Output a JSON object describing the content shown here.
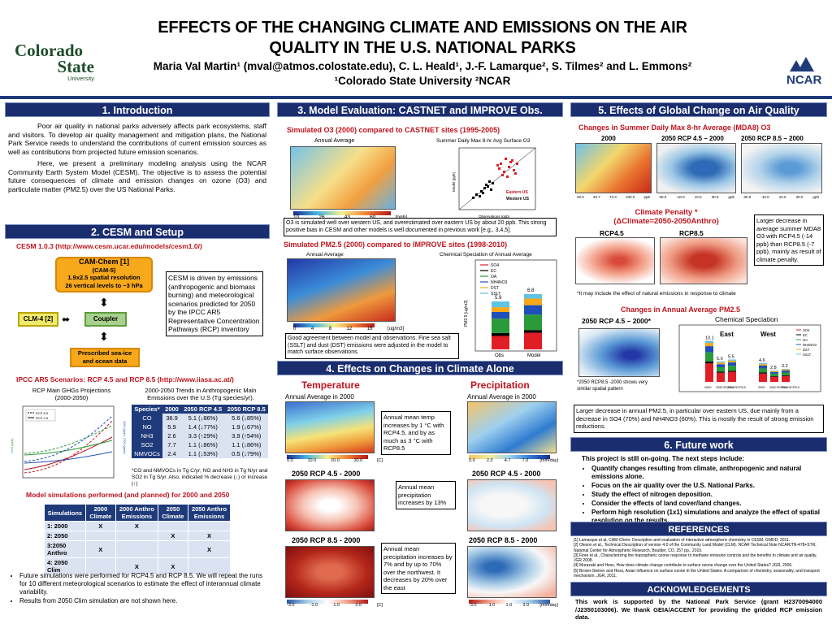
{
  "header": {
    "title_line1": "EFFECTS OF THE CHANGING  CLIMATE  AND EMISSIONS ON THE AIR",
    "title_line2": "QUALITY  IN THE U.S. NATIONAL PARKS",
    "authors": "Maria Val Martin¹ (mval@atmos.colostate.edu), C. L. Heald¹, J.-F. Lamarque², S. Tilmes² and L. Emmons²",
    "affiliation": "¹Colorado State University ²NCAR",
    "logo_left": [
      "Colorado",
      "State",
      "University"
    ],
    "logo_right": "NCAR"
  },
  "s1": {
    "title": "1. Introduction",
    "p1": "Poor air quality in national parks adversely affects park ecosystems, staff and visitors. To develop air quality management and mitigation plans, the National Park Service needs to understand the contributions of current emission sources as well as contributions from projected future emission scenarios.",
    "p2": "Here, we present a preliminary modeling analysis using the NCAR Community Earth System Model (CESM). The objective is to assess the potential future consequences of climate and emission changes on ozone (O3) and particulate matter (PM2.5) over the US National Parks."
  },
  "s2": {
    "title": "2. CESM and Setup",
    "url": "CESM 1.0.3 (http://www.cesm.ucar.edu/models/cesm1.0/)",
    "camchem": [
      "CAM-Chem [1]",
      "(CAM-5)",
      "1.9x2.5 spatial resolution",
      "26 vertical levels to ~3 hPa"
    ],
    "clm": "CLM-4 [2]",
    "coupler": "Coupler",
    "ocean": [
      "Prescribed sea-ice",
      "and ocean data"
    ],
    "driven": "CESM is driven by emissions (anthropogenic and biomass burning)  and meteorological scenarios predicted for 2050 by the IPCC AR5 Representative Concentration Pathways (RCP) inventory",
    "ipcc": "IPCC AR5 Scenarios: RCP 4.5 and RCP 8.5 (http://www.iiasa.ac.at/)",
    "ghg_title": [
      "RCP Main GHGs Projections",
      "(2000-2050)"
    ],
    "trend_title": [
      "2000-2050 Trends in Anthropogenic Main",
      "Emissions over the U.S (Tg species/yr)."
    ],
    "trend_headers": [
      "Species*",
      "2000",
      "2050 RCP 4.5",
      "2050 RCP 8.5"
    ],
    "trend_rows": [
      [
        "CO",
        "36.9",
        "5.1 (↓86%)",
        "5.6 (↓85%)"
      ],
      [
        "NO",
        "5.9",
        "1.4 (↓77%)",
        "1.9 (↓67%)"
      ],
      [
        "NH3",
        "2.6",
        "3.3 (↑29%)",
        "3.9 (↑54%)"
      ],
      [
        "SO2",
        "7.7",
        "1.1 (↓86%)",
        "1.1 (↓86%)"
      ],
      [
        "NMVOCs",
        "2.4",
        "1.1 (↓53%)",
        "0.5 (↓79%)"
      ]
    ],
    "trend_note": "*CO and NMVOCs in Tg C/yr; NO and NH3 in Tg N/yr and SO2 in Tg S/yr. Also, indicated % decrease (↓) or increase (↑)",
    "sim_title": "Model simulations performed (and planned) for 2000 and 2050",
    "sim_headers": [
      "Simulations",
      "2000 Climate",
      "2000 Anthro Emissions",
      "2050 Climate",
      "2050 Anthro Emissions"
    ],
    "sim_rows": [
      [
        "1: 2000",
        "X",
        "X",
        "",
        ""
      ],
      [
        "2: 2050",
        "",
        "",
        "X",
        "X"
      ],
      [
        "3:2050 Anthro",
        "X",
        "",
        "",
        "X"
      ],
      [
        "4: 2050 Clim",
        "",
        "X",
        "X",
        ""
      ]
    ],
    "bullets": [
      "Future simulations were performed for RCP4.5 and RCP 8.5. We will repeat the runs for 10 different meteorological scenarios to estimate the effect of interannual climate variability.",
      "Results from 2050 Clim simulation are not shown here."
    ],
    "ghg_legend": [
      "RCP 8.5",
      "RCP 4.5"
    ],
    "ghg_ylabels": [
      "CH4 (ppb)",
      "N2O (ppb), CO2 (ppm)"
    ]
  },
  "s3": {
    "title": "3. Model Evaluation: CASTNET and IMPROVE Obs.",
    "sub1": "Simulated  O3  (2000) compared to CASTNET sites (1995-2005)",
    "map1_label": "Annual  Average",
    "scatter_title": "Summer Daily Max 8-hr Avg Surface O3",
    "scatter_legend": [
      "Eastern US",
      "Western US"
    ],
    "scatter_xlabel": "Observations (ppb)",
    "scatter_ylabel": "Model (ppb)",
    "cb1": [
      "10",
      "26",
      "43",
      "60",
      "[ppb]"
    ],
    "note1": "O3  is simulated well over western US, and  overestimated over eastern US by about 20 ppb. This strong positive bias in CESM and other models is well documented in previous work [e.g., 3,4,5].",
    "sub2": "Simulated PM2.5  (2000) compared to IMPROVE sites (1998-2010)",
    "map2_label": "Annual Average",
    "bar_title": "Chemical Speciation of Annual Average",
    "bar_legend": [
      "SO4",
      "EC",
      "OA",
      "NH4NO3",
      "DST",
      "SSLT"
    ],
    "bar_values": [
      "5.9",
      "6.8"
    ],
    "bar_cats": [
      "Obs",
      "Model"
    ],
    "bar_ylabel": "PM2.5 [ug/m3]",
    "cb2": [
      "0",
      "4",
      "8",
      "12",
      "16",
      "[ug/m3]"
    ],
    "note2": "Good agreement between model and observations.  Fine sea salt (SSLT) and dust (DST) emissions were adjusted in the model to match surface observations."
  },
  "s4": {
    "title": "4. Effects on Changes in Climate Alone",
    "temp": "Temperature",
    "precip": "Precipitation",
    "aa2000": "Annual Average in 2000",
    "rcp45": "2050 RCP 4.5 - 2000",
    "rcp85": "2050 RCP 8.5 - 2000",
    "note_temp": "Annual mean temp increases by 1 °C with RCP4.5, and by as much as 3 °C with RCP8.5",
    "note_p45": "Annual mean precipitation increases by 13%",
    "note_p85": "Annual mean precipitation increases by 7% and by up to 70% over the northwest. It decreases by 20% over the east",
    "cb_t": [
      "0.0",
      "10.0",
      "20.0",
      "30.0",
      "[C]"
    ],
    "cb_p": [
      "0.0",
      "2.3",
      "4.7",
      "7.0",
      "[mm/day]"
    ],
    "cb_dt": [
      "-3.0",
      "-1.0",
      "1.0",
      "3.0",
      "[C]"
    ],
    "cb_dp": [
      "-3.0",
      "-1.0",
      "1.0",
      "3.0",
      "[mm/day]"
    ]
  },
  "s5": {
    "title": "5. Effects of Global Change on Air Quality",
    "sub1": "Changes in Summer Daily Max 8-hr Average (MDA8)  O3",
    "m1": "2000",
    "m2": "2050 RCP 4.5 – 2000",
    "m3": "2050 RCP 8.5 – 2000",
    "penalty_t1": "Climate Penalty *",
    "penalty_t2": "(ΔClimate=2050-2050Anthro)",
    "rcp45": "RCP4.5",
    "rcp85": "RCP8.5",
    "penalty_note": "Larger decrease in average summer MDA8 O3 with RCP4.5 (-14 ppb) than RCP8.5 (-7 ppb), mainly as result of climate penalty.",
    "penalty_foot": "*It may include the effect of natural emissions in response to climate",
    "sub2": "Changes in Annual Average PM2.5",
    "pm_map": "2050 RCP 4.5 – 2000*",
    "chem_spec": "Chemical Speciation",
    "east": "East",
    "west": "West",
    "pm_map_note": "*2050 RCP8.5 -2000 shows very similar spatial pattern",
    "east_vals": [
      "10.1",
      "5.0",
      "5.5"
    ],
    "west_vals": [
      "4.6",
      "2.8",
      "3.2"
    ],
    "cats": [
      "2000",
      "2050 RCP4.5",
      "2050 RCP8.5"
    ],
    "pm_note": "Larger decrease in annual PM2.5, in particular over eastern US, due mainly from a decrease in SO4 (70%) and NH4NO3 (60%). This is mostly the result of strong emission reductions.",
    "cb_o": [
      "20.0",
      "40.7",
      "73.3",
      "100.0",
      "ppb"
    ],
    "cb_d": [
      "-30.0",
      "-10.0",
      "10.0",
      "30.0",
      "ppb"
    ]
  },
  "s6": {
    "title": "6. Future work",
    "intro": "This project is still on-going. The next steps include:",
    "items": [
      "Quantify changes resulting from climate, anthropogenic and natural emissions alone.",
      "Focus on the air quality over the U.S. National Parks.",
      "Study the effect of nitrogen deposition.",
      "Consider the effects of land cover/land changes.",
      "Perform high resolution (1x1) simulations and analyze the effect of spatial resolution on the results."
    ]
  },
  "refs": {
    "title": "REFERENCES",
    "items": [
      "[1] Lamarque et al, CAM-Chem: Description and evaluation of interactive atmospheric chemistry in CESM, GMDD, 2011.",
      "[2] Oleson et al., Technical Description of version 4.0 of the Community Land Model (CLM). NCAR Technical Note NCAR/TN-478+STR, National Center for Atmospheric Research, Boulder, CO, 257 pp., 2010.",
      "[3] Fiore et al., Characterizing the tropospheric ozone response to methane emission controls and the benefits to climate and air quality, JGR 2008.",
      "[4] Murazaki and Hess, How does climate change contribute to surface ozone change over the United States? JGR, 2006.",
      "[5] Brown-Steiner and Hess, Asian influence on surface ozone in the United States: A comparison of chemistry, seasonality, and transport mechanism, JGR, 2011."
    ]
  },
  "ack": {
    "title": "ACKNOWLEDGEMENTS",
    "text": "This work is supported by the National Park Service (grant H2370094000 /J2350103006). We thank GEIA/ACCENT for providing the gridded RCP emission data."
  }
}
